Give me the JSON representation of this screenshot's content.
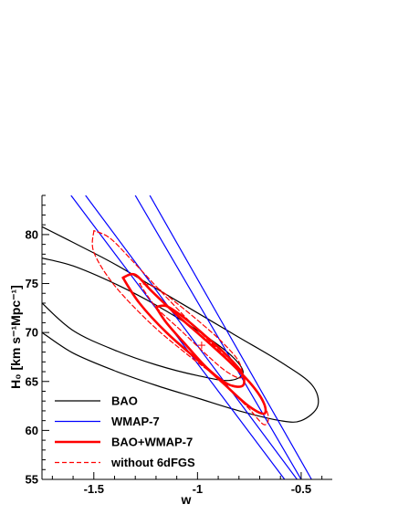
{
  "chart_data": {
    "type": "line",
    "title": "",
    "xlabel": "w",
    "ylabel": "H₀ [km s⁻¹Mpc⁻¹]",
    "xlim": [
      -1.75,
      -0.35
    ],
    "ylim": [
      55,
      84
    ],
    "xticks": [
      -1.5,
      -1.0,
      -0.5
    ],
    "xtick_labels": [
      "-1.5",
      "-1",
      "-0.5"
    ],
    "yticks": [
      55,
      60,
      65,
      70,
      75,
      80
    ],
    "ytick_labels": [
      "55",
      "60",
      "65",
      "70",
      "75",
      "80"
    ],
    "grid": false,
    "legend_position": "bottom-left",
    "best_fit": {
      "w": -0.98,
      "H0": 68.7
    },
    "series": [
      {
        "name": "BAO",
        "color": "#000000",
        "dash": "solid",
        "contours": [
          {
            "level": "68%",
            "center": [
              -1.1,
              71.0
            ],
            "points": [
              [
                -1.75,
                73.0
              ],
              [
                -1.6,
                70.2
              ],
              [
                -1.4,
                68.2
              ],
              [
                -1.2,
                66.7
              ],
              [
                -1.0,
                65.6
              ],
              [
                -0.85,
                65.1
              ],
              [
                -0.78,
                65.9
              ],
              [
                -0.84,
                67.7
              ],
              [
                -1.0,
                70.2
              ],
              [
                -1.2,
                72.8
              ],
              [
                -1.4,
                75.0
              ],
              [
                -1.6,
                76.8
              ],
              [
                -1.75,
                77.6
              ]
            ]
          },
          {
            "level": "95%",
            "center": [
              -1.0,
              69.0
            ],
            "points": [
              [
                -1.75,
                70.0
              ],
              [
                -1.6,
                67.9
              ],
              [
                -1.4,
                66.1
              ],
              [
                -1.2,
                64.6
              ],
              [
                -1.0,
                63.3
              ],
              [
                -0.8,
                62.0
              ],
              [
                -0.6,
                61.0
              ],
              [
                -0.5,
                61.0
              ],
              [
                -0.42,
                62.5
              ],
              [
                -0.45,
                64.7
              ],
              [
                -0.6,
                67.0
              ],
              [
                -0.8,
                69.5
              ],
              [
                -1.0,
                72.0
              ],
              [
                -1.2,
                74.5
              ],
              [
                -1.4,
                77.0
              ],
              [
                -1.6,
                79.2
              ],
              [
                -1.75,
                80.8
              ]
            ]
          }
        ]
      },
      {
        "name": "WMAP-7",
        "color": "#0000ff",
        "dash": "solid",
        "lines": [
          {
            "points": [
              [
                -1.61,
                84.0
              ],
              [
                -0.58,
                55.0
              ]
            ]
          },
          {
            "points": [
              [
                -1.54,
                84.0
              ],
              [
                -0.52,
                55.0
              ]
            ]
          },
          {
            "points": [
              [
                -1.3,
                84.0
              ],
              [
                -0.5,
                55.0
              ]
            ]
          },
          {
            "points": [
              [
                -1.23,
                84.0
              ],
              [
                -0.45,
                55.0
              ]
            ]
          }
        ]
      },
      {
        "name": "BAO+WMAP-7",
        "color": "#ff0000",
        "dash": "solid",
        "contours": [
          {
            "level": "68%",
            "points": [
              [
                -1.2,
                72.6
              ],
              [
                -1.15,
                71.0
              ],
              [
                -1.05,
                68.6
              ],
              [
                -0.95,
                66.3
              ],
              [
                -0.85,
                64.7
              ],
              [
                -0.78,
                64.6
              ],
              [
                -0.79,
                66.0
              ],
              [
                -0.87,
                67.9
              ],
              [
                -0.97,
                69.8
              ],
              [
                -1.07,
                71.6
              ],
              [
                -1.15,
                72.7
              ],
              [
                -1.2,
                72.6
              ]
            ]
          },
          {
            "level": "95%",
            "points": [
              [
                -1.36,
                75.6
              ],
              [
                -1.28,
                73.0
              ],
              [
                -1.15,
                70.0
              ],
              [
                -1.0,
                67.2
              ],
              [
                -0.88,
                64.9
              ],
              [
                -0.76,
                62.6
              ],
              [
                -0.68,
                61.7
              ],
              [
                -0.68,
                62.8
              ],
              [
                -0.74,
                64.7
              ],
              [
                -0.84,
                66.9
              ],
              [
                -0.97,
                69.4
              ],
              [
                -1.1,
                71.8
              ],
              [
                -1.22,
                74.2
              ],
              [
                -1.3,
                75.9
              ],
              [
                -1.36,
                75.6
              ]
            ]
          }
        ]
      },
      {
        "name": "without 6dFGS",
        "color": "#ff0000",
        "dash": "dashed",
        "contours": [
          {
            "level": "68%",
            "points": [
              [
                -1.28,
                75.0
              ],
              [
                -1.2,
                72.6
              ],
              [
                -1.08,
                70.2
              ],
              [
                -0.96,
                67.8
              ],
              [
                -0.86,
                66.0
              ],
              [
                -0.79,
                65.4
              ],
              [
                -0.8,
                67.0
              ],
              [
                -0.88,
                69.0
              ],
              [
                -0.98,
                70.9
              ],
              [
                -1.1,
                73.0
              ],
              [
                -1.2,
                74.6
              ],
              [
                -1.28,
                75.0
              ]
            ]
          },
          {
            "level": "95%",
            "points": [
              [
                -1.5,
                80.4
              ],
              [
                -1.5,
                78.2
              ],
              [
                -1.4,
                74.8
              ],
              [
                -1.22,
                70.8
              ],
              [
                -1.04,
                67.6
              ],
              [
                -0.9,
                65.3
              ],
              [
                -0.76,
                62.4
              ],
              [
                -0.68,
                60.6
              ],
              [
                -0.66,
                61.6
              ],
              [
                -0.72,
                64.1
              ],
              [
                -0.85,
                67.2
              ],
              [
                -1.0,
                70.3
              ],
              [
                -1.15,
                73.6
              ],
              [
                -1.3,
                77.0
              ],
              [
                -1.42,
                79.6
              ],
              [
                -1.5,
                80.4
              ]
            ]
          }
        ]
      }
    ]
  }
}
